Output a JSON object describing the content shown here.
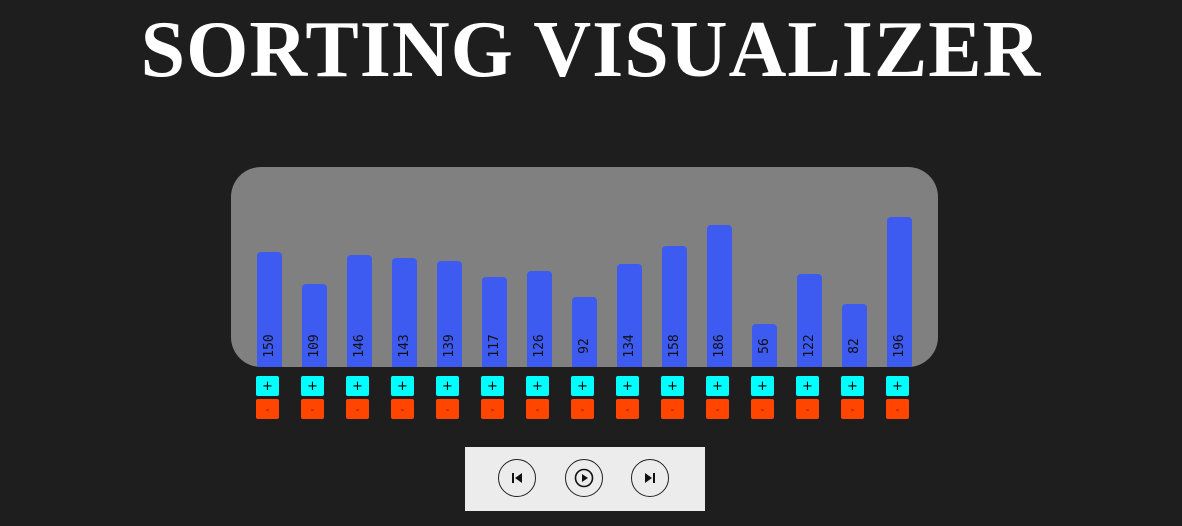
{
  "header": {
    "title": "SORTING VISUALIZER"
  },
  "chart_data": {
    "type": "bar",
    "values": [
      150,
      109,
      146,
      143,
      139,
      117,
      126,
      92,
      134,
      158,
      186,
      56,
      122,
      82,
      196
    ],
    "bar_color": "#3d5af1",
    "panel_color": "#808080"
  },
  "controls": {
    "plus_label": "+",
    "minus_label": "-",
    "plus_color": "#00ffff",
    "minus_color": "#ff4500"
  },
  "player": {
    "previous_icon": "skip-previous-icon",
    "play_icon": "play-icon",
    "next_icon": "skip-next-icon"
  },
  "colors": {
    "background": "#1e1e1e",
    "title": "#ffffff",
    "player_bg": "#ececec"
  }
}
